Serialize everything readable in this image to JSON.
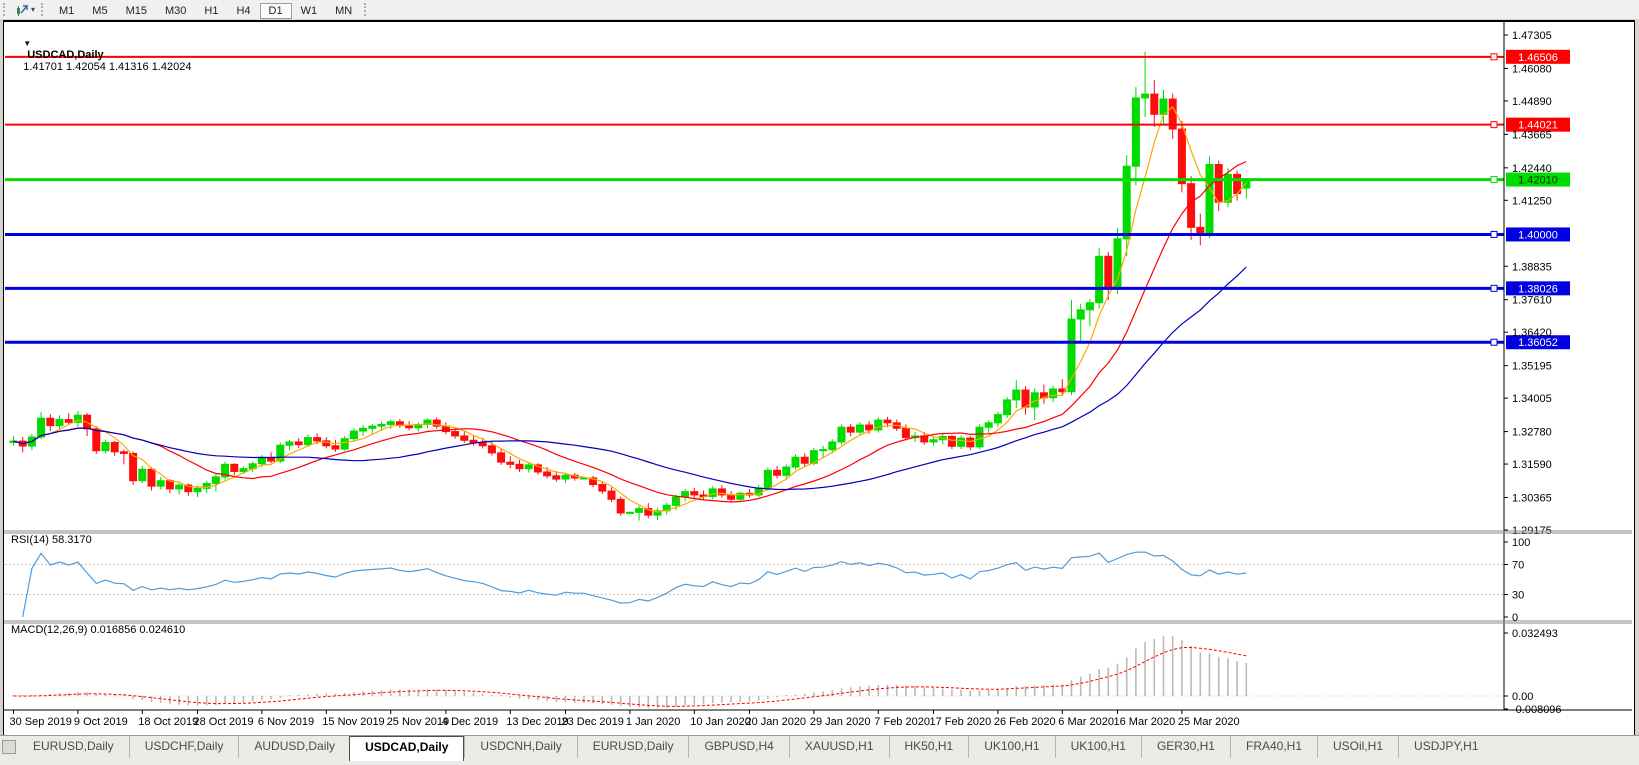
{
  "icons": {
    "title_marker": "▼",
    "caret": "▾"
  },
  "toolbar": {
    "timeframes": [
      "M1",
      "M5",
      "M15",
      "M30",
      "H1",
      "H4",
      "D1",
      "W1",
      "MN"
    ],
    "active": "D1"
  },
  "tabs": {
    "items": [
      "EURUSD,Daily",
      "USDCHF,Daily",
      "AUDUSD,Daily",
      "USDCAD,Daily",
      "USDCNH,Daily",
      "EURUSD,Daily",
      "GBPUSD,H4",
      "XAUUSD,H1",
      "HK50,H1",
      "UK100,H1",
      "UK100,H1",
      "GER30,H1",
      "FRA40,H1",
      "USOil,H1",
      "USDJPY,H1"
    ],
    "active_index": 3
  },
  "chart_data": {
    "type": "candlestick",
    "symbol": "USDCAD",
    "timeframe": "Daily",
    "title": {
      "symbol": "USDCAD,Daily",
      "ohlc": "1.41701 1.42054 1.41316 1.42024"
    },
    "colors": {
      "bull": "#00dc00",
      "bear": "#ff0d0d",
      "ma_fast": "#ffa800",
      "ma_mid": "#ff0000",
      "ma_slow": "#0000b8",
      "rsi_line": "#4f9cdc",
      "rsi_level": "#c4c4c4",
      "macd_hist": "#b9b9b9",
      "macd_signal": "#ff0000",
      "axis": "#000000"
    },
    "y_axis": {
      "ticks": [
        {
          "label": "1.47305",
          "value": 1.47305
        },
        {
          "label": "1.46080",
          "value": 1.4608
        },
        {
          "label": "1.44890",
          "value": 1.4489
        },
        {
          "label": "1.43665",
          "value": 1.43665
        },
        {
          "label": "1.42440",
          "value": 1.4244
        },
        {
          "label": "1.41250",
          "value": 1.4125
        },
        {
          "label": "1.38835",
          "value": 1.38835
        },
        {
          "label": "1.37610",
          "value": 1.3761
        },
        {
          "label": "1.36420",
          "value": 1.3642
        },
        {
          "label": "1.35195",
          "value": 1.35195
        },
        {
          "label": "1.34005",
          "value": 1.34005
        },
        {
          "label": "1.32780",
          "value": 1.3278
        },
        {
          "label": "1.31590",
          "value": 1.3159
        },
        {
          "label": "1.30365",
          "value": 1.30365
        },
        {
          "label": "1.29175",
          "value": 1.29175
        }
      ]
    },
    "hlines": [
      {
        "value": 1.46506,
        "label": "1.46506",
        "color": "#ff0000",
        "text": "#ffffff",
        "width": 2
      },
      {
        "value": 1.44021,
        "label": "1.44021",
        "color": "#ff0000",
        "text": "#ffffff",
        "width": 2
      },
      {
        "value": 1.4201,
        "label": "1.42010",
        "color": "#00dc00",
        "text": "#003300",
        "width": 3
      },
      {
        "value": 1.4,
        "label": "1.40000",
        "color": "#0000e0",
        "text": "#ffffff",
        "width": 3
      },
      {
        "value": 1.38026,
        "label": "1.38026",
        "color": "#0000e0",
        "text": "#ffffff",
        "width": 3
      },
      {
        "value": 1.36052,
        "label": "1.36052",
        "color": "#0000e0",
        "text": "#ffffff",
        "width": 3
      }
    ],
    "moving_averages": [
      {
        "name": "fast",
        "period": 5,
        "color": "#ffa800"
      },
      {
        "name": "mid",
        "period": 14,
        "color": "#ff0000"
      },
      {
        "name": "slow",
        "period": 30,
        "color": "#0000b8"
      }
    ],
    "x_labels": [
      "30 Sep 2019",
      "9 Oct 2019",
      "18 Oct 2019",
      "28 Oct 2019",
      "6 Nov 2019",
      "15 Nov 2019",
      "25 Nov 2019",
      "4 Dec 2019",
      "13 Dec 2019",
      "23 Dec 2019",
      "1 Jan 2020",
      "10 Jan 2020",
      "20 Jan 2020",
      "29 Jan 2020",
      "7 Feb 2020",
      "17 Feb 2020",
      "26 Feb 2020",
      "6 Mar 2020",
      "16 Mar 2020",
      "25 Mar 2020"
    ],
    "x_label_indices": [
      0,
      7,
      14,
      20,
      27,
      34,
      41,
      47,
      54,
      60,
      67,
      74,
      80,
      87,
      94,
      100,
      107,
      114,
      120,
      127
    ],
    "rsi": {
      "label": "RSI(14) 58.3170",
      "period": 14,
      "current": 58.317,
      "ticks": [
        100,
        70,
        30,
        0
      ],
      "levels": [
        70,
        30
      ]
    },
    "macd": {
      "label": "MACD(12,26,9) 0.016856 0.024610",
      "fast": 12,
      "slow": 26,
      "signal": 9,
      "current_macd": 0.016856,
      "current_signal": 0.02461,
      "ticks": [
        {
          "label": "0.032493",
          "value": 0.032493
        },
        {
          "label": "0.00",
          "value": 0
        },
        {
          "label": "-0.008096",
          "value": -0.008096
        }
      ]
    },
    "ohlc": [
      [
        1.3238,
        1.3262,
        1.3227,
        1.3243
      ],
      [
        1.3243,
        1.3258,
        1.3202,
        1.3225
      ],
      [
        1.3225,
        1.327,
        1.321,
        1.3258
      ],
      [
        1.3258,
        1.3349,
        1.325,
        1.3327
      ],
      [
        1.3327,
        1.3342,
        1.328,
        1.33
      ],
      [
        1.33,
        1.3338,
        1.3288,
        1.3322
      ],
      [
        1.3322,
        1.3345,
        1.3302,
        1.3312
      ],
      [
        1.3312,
        1.3352,
        1.3296,
        1.3338
      ],
      [
        1.3338,
        1.3346,
        1.3262,
        1.3288
      ],
      [
        1.3288,
        1.3298,
        1.3196,
        1.3208
      ],
      [
        1.3208,
        1.3248,
        1.3198,
        1.3238
      ],
      [
        1.3238,
        1.3244,
        1.3188,
        1.3204
      ],
      [
        1.3204,
        1.3212,
        1.3158,
        1.3198
      ],
      [
        1.3198,
        1.3205,
        1.3082,
        1.3098
      ],
      [
        1.3098,
        1.3152,
        1.309,
        1.314
      ],
      [
        1.314,
        1.3148,
        1.3062,
        1.3078
      ],
      [
        1.3078,
        1.3112,
        1.3066,
        1.3098
      ],
      [
        1.3098,
        1.3104,
        1.3052,
        1.3068
      ],
      [
        1.3068,
        1.309,
        1.3048,
        1.3082
      ],
      [
        1.3082,
        1.3088,
        1.3042,
        1.3058
      ],
      [
        1.3058,
        1.308,
        1.3038,
        1.307
      ],
      [
        1.307,
        1.3098,
        1.3052,
        1.3088
      ],
      [
        1.3088,
        1.3122,
        1.3058,
        1.3112
      ],
      [
        1.3112,
        1.3168,
        1.3102,
        1.3158
      ],
      [
        1.3158,
        1.3162,
        1.3118,
        1.3132
      ],
      [
        1.3132,
        1.315,
        1.3122,
        1.3142
      ],
      [
        1.3142,
        1.3168,
        1.313,
        1.316
      ],
      [
        1.316,
        1.3192,
        1.3148,
        1.3184
      ],
      [
        1.3184,
        1.3202,
        1.3162,
        1.317
      ],
      [
        1.317,
        1.3238,
        1.3162,
        1.3228
      ],
      [
        1.3228,
        1.3248,
        1.321,
        1.324
      ],
      [
        1.324,
        1.3254,
        1.3218,
        1.323
      ],
      [
        1.323,
        1.3268,
        1.3222,
        1.3256
      ],
      [
        1.3256,
        1.3272,
        1.3232,
        1.3244
      ],
      [
        1.3244,
        1.3258,
        1.3216,
        1.3226
      ],
      [
        1.3226,
        1.3248,
        1.3204,
        1.3214
      ],
      [
        1.3214,
        1.3262,
        1.3208,
        1.3252
      ],
      [
        1.3252,
        1.329,
        1.324,
        1.328
      ],
      [
        1.328,
        1.3302,
        1.3262,
        1.329
      ],
      [
        1.329,
        1.3306,
        1.327,
        1.3298
      ],
      [
        1.3298,
        1.3314,
        1.328,
        1.3304
      ],
      [
        1.3304,
        1.3322,
        1.3288,
        1.3314
      ],
      [
        1.3314,
        1.3324,
        1.3292,
        1.33
      ],
      [
        1.33,
        1.3316,
        1.3282,
        1.3292
      ],
      [
        1.3292,
        1.3312,
        1.3278,
        1.3304
      ],
      [
        1.3304,
        1.3327,
        1.329,
        1.332
      ],
      [
        1.332,
        1.333,
        1.3288,
        1.3298
      ],
      [
        1.3298,
        1.3312,
        1.3268,
        1.3278
      ],
      [
        1.3278,
        1.3295,
        1.3252,
        1.3262
      ],
      [
        1.3262,
        1.3278,
        1.3236,
        1.3246
      ],
      [
        1.3246,
        1.3262,
        1.3226,
        1.3238
      ],
      [
        1.3238,
        1.3255,
        1.3216,
        1.3226
      ],
      [
        1.3226,
        1.3242,
        1.319,
        1.32
      ],
      [
        1.32,
        1.3214,
        1.3156,
        1.3166
      ],
      [
        1.3166,
        1.3188,
        1.3144,
        1.3158
      ],
      [
        1.3158,
        1.3174,
        1.313,
        1.3142
      ],
      [
        1.3142,
        1.3166,
        1.3128,
        1.3156
      ],
      [
        1.3156,
        1.3162,
        1.312,
        1.313
      ],
      [
        1.313,
        1.3148,
        1.3106,
        1.3116
      ],
      [
        1.3116,
        1.3134,
        1.3094,
        1.3104
      ],
      [
        1.3104,
        1.3128,
        1.309,
        1.3118
      ],
      [
        1.3118,
        1.3126,
        1.3098,
        1.3108
      ],
      [
        1.3108,
        1.3112,
        1.3104,
        1.3108
      ],
      [
        1.3108,
        1.3116,
        1.3074,
        1.3084
      ],
      [
        1.3084,
        1.3096,
        1.305,
        1.306
      ],
      [
        1.306,
        1.3074,
        1.302,
        1.303
      ],
      [
        1.303,
        1.304,
        1.297,
        1.298
      ],
      [
        1.298,
        1.2986,
        1.2976,
        1.2982
      ],
      [
        1.2982,
        1.3006,
        1.2952,
        1.2996
      ],
      [
        1.2996,
        1.3016,
        1.296,
        1.2972
      ],
      [
        1.2972,
        1.2998,
        1.2954,
        1.2988
      ],
      [
        1.2988,
        1.3018,
        1.2974,
        1.3008
      ],
      [
        1.3008,
        1.3048,
        1.299,
        1.3038
      ],
      [
        1.3038,
        1.3068,
        1.3022,
        1.3058
      ],
      [
        1.3058,
        1.3072,
        1.3034,
        1.3046
      ],
      [
        1.3046,
        1.3062,
        1.3026,
        1.304
      ],
      [
        1.304,
        1.3078,
        1.303,
        1.3068
      ],
      [
        1.3068,
        1.3082,
        1.3036,
        1.3046
      ],
      [
        1.3046,
        1.306,
        1.302,
        1.303
      ],
      [
        1.303,
        1.3058,
        1.302,
        1.3052
      ],
      [
        1.3052,
        1.3068,
        1.3036,
        1.3046
      ],
      [
        1.3046,
        1.3082,
        1.3038,
        1.3072
      ],
      [
        1.3072,
        1.3146,
        1.3062,
        1.3136
      ],
      [
        1.3136,
        1.3152,
        1.3106,
        1.3118
      ],
      [
        1.3118,
        1.3158,
        1.3102,
        1.3148
      ],
      [
        1.3148,
        1.3194,
        1.3138,
        1.3184
      ],
      [
        1.3184,
        1.3198,
        1.315,
        1.3162
      ],
      [
        1.3162,
        1.3218,
        1.3154,
        1.3208
      ],
      [
        1.3208,
        1.3226,
        1.318,
        1.3212
      ],
      [
        1.3212,
        1.325,
        1.3198,
        1.324
      ],
      [
        1.324,
        1.3304,
        1.323,
        1.3294
      ],
      [
        1.3294,
        1.3306,
        1.326,
        1.3276
      ],
      [
        1.3276,
        1.3312,
        1.3264,
        1.3302
      ],
      [
        1.3302,
        1.3316,
        1.327,
        1.3284
      ],
      [
        1.3284,
        1.333,
        1.3274,
        1.332
      ],
      [
        1.332,
        1.3332,
        1.3294,
        1.331
      ],
      [
        1.331,
        1.3322,
        1.328,
        1.329
      ],
      [
        1.329,
        1.3304,
        1.3246,
        1.3256
      ],
      [
        1.3256,
        1.3278,
        1.324,
        1.3262
      ],
      [
        1.3262,
        1.3276,
        1.323,
        1.324
      ],
      [
        1.324,
        1.3258,
        1.3226,
        1.3248
      ],
      [
        1.3248,
        1.327,
        1.3232,
        1.326
      ],
      [
        1.326,
        1.3266,
        1.3214,
        1.3224
      ],
      [
        1.3224,
        1.3264,
        1.3214,
        1.3254
      ],
      [
        1.3254,
        1.3262,
        1.321,
        1.3222
      ],
      [
        1.3222,
        1.3304,
        1.3214,
        1.3294
      ],
      [
        1.3294,
        1.332,
        1.3272,
        1.331
      ],
      [
        1.331,
        1.335,
        1.3296,
        1.334
      ],
      [
        1.334,
        1.3404,
        1.3328,
        1.3394
      ],
      [
        1.3394,
        1.3466,
        1.3364,
        1.343
      ],
      [
        1.343,
        1.3444,
        1.334,
        1.3368
      ],
      [
        1.3368,
        1.3436,
        1.332,
        1.342
      ],
      [
        1.342,
        1.345,
        1.338,
        1.3402
      ],
      [
        1.3402,
        1.3446,
        1.3386,
        1.3434
      ],
      [
        1.3434,
        1.347,
        1.3408,
        1.3424
      ],
      [
        1.3424,
        1.376,
        1.3412,
        1.369
      ],
      [
        1.369,
        1.3746,
        1.3606,
        1.3724
      ],
      [
        1.3724,
        1.3764,
        1.3664,
        1.375
      ],
      [
        1.375,
        1.395,
        1.3728,
        1.392
      ],
      [
        1.392,
        1.3936,
        1.376,
        1.38
      ],
      [
        1.38,
        1.4024,
        1.3782,
        1.3984
      ],
      [
        1.3984,
        1.429,
        1.392,
        1.425
      ],
      [
        1.425,
        1.454,
        1.418,
        1.45
      ],
      [
        1.45,
        1.4669,
        1.443,
        1.4514
      ],
      [
        1.4514,
        1.4566,
        1.4394,
        1.444
      ],
      [
        1.444,
        1.453,
        1.44,
        1.4496
      ],
      [
        1.4496,
        1.4516,
        1.435,
        1.4386
      ],
      [
        1.4386,
        1.4416,
        1.4154,
        1.4186
      ],
      [
        1.4186,
        1.4214,
        1.398,
        1.4026
      ],
      [
        1.4026,
        1.4076,
        1.396,
        1.3998
      ],
      [
        1.3998,
        1.4286,
        1.3986,
        1.4256
      ],
      [
        1.4256,
        1.427,
        1.4086,
        1.4118
      ],
      [
        1.4118,
        1.4244,
        1.41,
        1.422
      ],
      [
        1.422,
        1.4234,
        1.4124,
        1.415
      ],
      [
        1.41701,
        1.42054,
        1.41316,
        1.42024
      ]
    ]
  }
}
